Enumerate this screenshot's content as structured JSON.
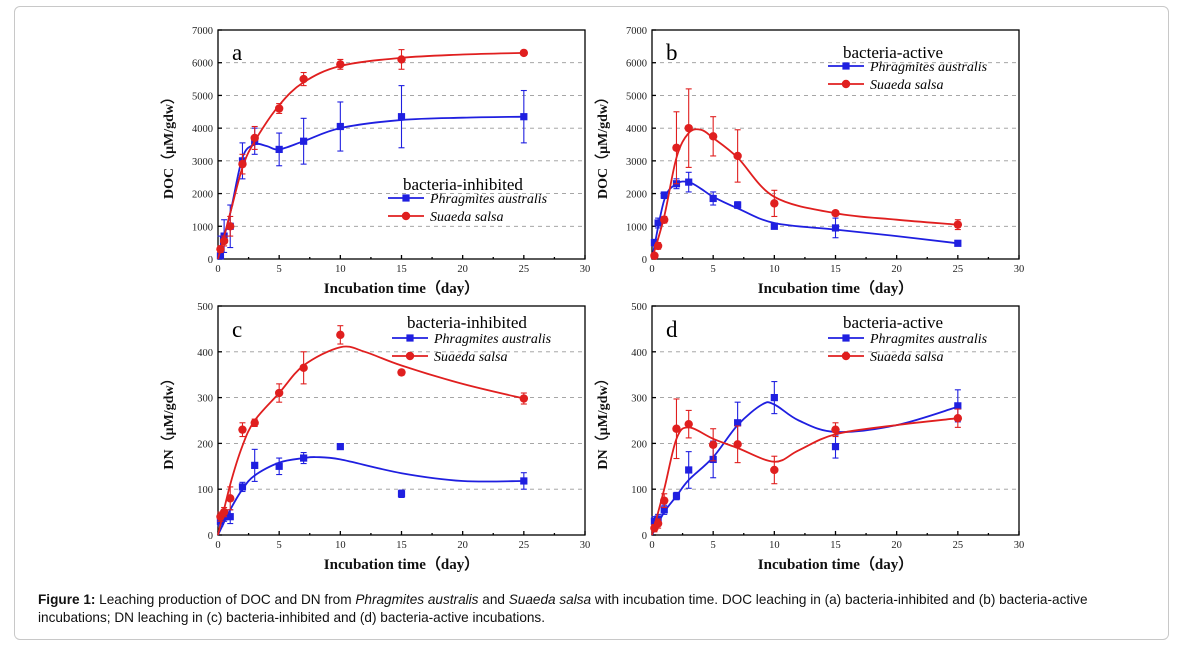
{
  "caption": {
    "label": "Figure 1:",
    "part1": " Leaching production of DOC and DN from ",
    "species1": "Phragmites australis",
    "part2": " and ",
    "species2": "Suaeda salsa",
    "part3": " with incubation time. DOC leaching in (a) bacteria-inhibited and (b) bacteria-active incubations; DN leaching in (c) bacteria-inhibited and (d) bacteria-active incubations."
  },
  "colors": {
    "phragmites": "#1f1fe0",
    "suaeda": "#e01f1f"
  },
  "chart_data": [
    {
      "type": "line",
      "panel": "a",
      "condition": "bacteria-inhibited",
      "xlabel": "Incubation time（day）",
      "ylabel": "DOC（μM/gdw）",
      "xlim": [
        0,
        30
      ],
      "ylim": [
        0,
        7000
      ],
      "xticks": [
        "0",
        "5",
        "10",
        "15",
        "20",
        "25",
        "30"
      ],
      "yticks": [
        "0",
        "1000",
        "2000",
        "3000",
        "4000",
        "5000",
        "6000",
        "7000"
      ],
      "legend_position": "center-right",
      "series": [
        {
          "name": "Phragmites australis",
          "color": "#1f1fe0",
          "marker": "square",
          "x": [
            0.2,
            0.5,
            1,
            2,
            3,
            5,
            7,
            10,
            15,
            25
          ],
          "y": [
            100,
            700,
            1000,
            3000,
            3600,
            3350,
            3600,
            4050,
            4350,
            4350
          ],
          "err": [
            600,
            500,
            650,
            550,
            400,
            500,
            700,
            750,
            950,
            800
          ],
          "fit_x": [
            0,
            1,
            2,
            3,
            4,
            5,
            7,
            10,
            15,
            20,
            25
          ],
          "fit_y": [
            0,
            1400,
            3100,
            3500,
            3450,
            3350,
            3600,
            4000,
            4250,
            4320,
            4350
          ]
        },
        {
          "name": "Suaeda salsa",
          "color": "#e01f1f",
          "marker": "circle",
          "x": [
            0.2,
            0.5,
            1,
            2,
            3,
            5,
            7,
            10,
            15,
            25
          ],
          "y": [
            300,
            550,
            1000,
            2900,
            3700,
            4600,
            5500,
            5950,
            6100,
            6300
          ],
          "err": [
            100,
            150,
            300,
            300,
            350,
            150,
            200,
            150,
            300,
            60
          ],
          "fit_x": [
            0,
            1,
            2,
            3,
            5,
            7,
            10,
            15,
            20,
            25
          ],
          "fit_y": [
            0,
            1400,
            2800,
            3600,
            4700,
            5400,
            5900,
            6150,
            6250,
            6300
          ]
        }
      ]
    },
    {
      "type": "line",
      "panel": "b",
      "condition": "bacteria-active",
      "xlabel": "Incubation time（day）",
      "ylabel": "DOC（μM/gdw）",
      "xlim": [
        0,
        30
      ],
      "ylim": [
        0,
        7000
      ],
      "xticks": [
        "0",
        "5",
        "10",
        "15",
        "20",
        "25",
        "30"
      ],
      "yticks": [
        "0",
        "1000",
        "2000",
        "3000",
        "4000",
        "5000",
        "6000",
        "7000"
      ],
      "legend_position": "top-right",
      "series": [
        {
          "name": "Phragmites australis",
          "color": "#1f1fe0",
          "marker": "square",
          "x": [
            0.2,
            0.5,
            1,
            2,
            3,
            5,
            7,
            10,
            15,
            25
          ],
          "y": [
            500,
            1100,
            1950,
            2300,
            2350,
            1850,
            1650,
            1000,
            950,
            480
          ],
          "err": [
            100,
            150,
            100,
            150,
            300,
            200,
            100,
            80,
            300,
            80
          ],
          "fit_x": [
            0,
            1,
            2,
            3,
            4,
            5,
            7,
            10,
            15,
            20,
            25
          ],
          "fit_y": [
            0,
            1800,
            2300,
            2350,
            2150,
            1900,
            1550,
            1100,
            900,
            700,
            480
          ]
        },
        {
          "name": "Suaeda salsa",
          "color": "#e01f1f",
          "marker": "circle",
          "x": [
            0.2,
            0.5,
            1,
            2,
            3,
            5,
            7,
            10,
            15,
            25
          ],
          "y": [
            100,
            400,
            1200,
            3400,
            4000,
            3750,
            3150,
            1700,
            1400,
            1050
          ],
          "err": [
            80,
            100,
            100,
            1100,
            1200,
            600,
            800,
            400,
            80,
            150
          ],
          "fit_x": [
            0,
            1,
            2,
            3,
            4,
            5,
            7,
            10,
            15,
            20,
            25
          ],
          "fit_y": [
            0,
            1300,
            3100,
            3850,
            3950,
            3700,
            3100,
            1900,
            1400,
            1200,
            1050
          ]
        }
      ]
    },
    {
      "type": "line",
      "panel": "c",
      "condition": "bacteria-inhibited",
      "xlabel": "Incubation time（day）",
      "ylabel": "DN（μM/gdw）",
      "xlim": [
        0,
        30
      ],
      "ylim": [
        0,
        500
      ],
      "xticks": [
        "0",
        "5",
        "10",
        "15",
        "20",
        "25",
        "30"
      ],
      "yticks": [
        "0",
        "100",
        "200",
        "300",
        "400",
        "500"
      ],
      "legend_position": "top-right",
      "series": [
        {
          "name": "Phragmites australis",
          "color": "#1f1fe0",
          "marker": "square",
          "x": [
            0.2,
            0.5,
            1,
            2,
            3,
            5,
            7,
            10,
            15,
            25
          ],
          "y": [
            30,
            40,
            40,
            105,
            152,
            150,
            168,
            193,
            90,
            118
          ],
          "err": [
            10,
            10,
            15,
            10,
            35,
            18,
            12,
            5,
            8,
            18
          ],
          "fit_x": [
            0,
            1,
            2,
            3,
            5,
            7,
            8,
            10,
            15,
            20,
            25
          ],
          "fit_y": [
            0,
            55,
            100,
            130,
            158,
            168,
            170,
            165,
            135,
            118,
            118
          ]
        },
        {
          "name": "Suaeda salsa",
          "color": "#e01f1f",
          "marker": "circle",
          "x": [
            0.2,
            0.5,
            1,
            2,
            3,
            5,
            7,
            10,
            15,
            25
          ],
          "y": [
            40,
            50,
            80,
            230,
            245,
            310,
            365,
            437,
            355,
            298
          ],
          "err": [
            10,
            10,
            25,
            15,
            8,
            20,
            35,
            20,
            6,
            12
          ],
          "fit_x": [
            0,
            1,
            2,
            3,
            5,
            7,
            10,
            12,
            15,
            20,
            25
          ],
          "fit_y": [
            0,
            110,
            195,
            250,
            310,
            370,
            410,
            400,
            370,
            330,
            298
          ]
        }
      ]
    },
    {
      "type": "line",
      "panel": "d",
      "condition": "bacteria-active",
      "xlabel": "Incubation time（day）",
      "ylabel": "DN（μM/gdw）",
      "xlim": [
        0,
        30
      ],
      "ylim": [
        0,
        500
      ],
      "xticks": [
        "0",
        "5",
        "10",
        "15",
        "20",
        "25",
        "30"
      ],
      "yticks": [
        "0",
        "100",
        "200",
        "300",
        "400",
        "500"
      ],
      "legend_position": "top-right",
      "series": [
        {
          "name": "Phragmites australis",
          "color": "#1f1fe0",
          "marker": "square",
          "x": [
            0.2,
            0.5,
            1,
            2,
            3,
            5,
            7,
            10,
            15,
            25
          ],
          "y": [
            30,
            35,
            55,
            85,
            142,
            165,
            245,
            300,
            193,
            282
          ],
          "err": [
            10,
            10,
            10,
            8,
            40,
            40,
            45,
            35,
            25,
            35
          ],
          "fit_x": [
            0,
            1,
            2,
            3,
            5,
            7,
            9,
            10,
            12,
            15,
            20,
            25
          ],
          "fit_y": [
            0,
            50,
            85,
            120,
            170,
            240,
            285,
            285,
            250,
            225,
            240,
            280
          ]
        },
        {
          "name": "Suaeda salsa",
          "color": "#e01f1f",
          "marker": "circle",
          "x": [
            0.2,
            0.5,
            1,
            2,
            3,
            5,
            7,
            10,
            15,
            25
          ],
          "y": [
            15,
            25,
            75,
            232,
            242,
            197,
            198,
            142,
            230,
            255
          ],
          "err": [
            8,
            10,
            15,
            65,
            30,
            35,
            40,
            30,
            15,
            20
          ],
          "fit_x": [
            0,
            1,
            2,
            3,
            5,
            7,
            10,
            12,
            15,
            20,
            25
          ],
          "fit_y": [
            0,
            100,
            210,
            235,
            210,
            190,
            160,
            185,
            220,
            240,
            255
          ]
        }
      ]
    }
  ]
}
